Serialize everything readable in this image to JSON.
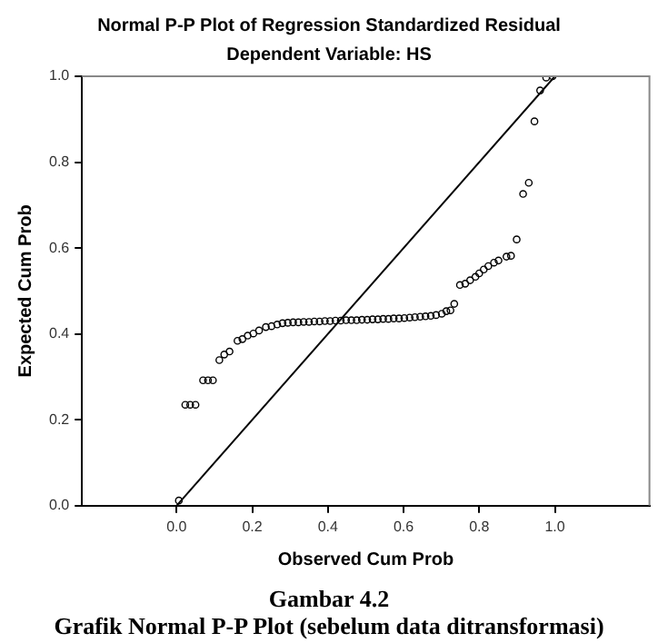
{
  "chart_data": {
    "type": "scatter",
    "title": "Normal P-P Plot of Regression Standardized Residual",
    "subtitle": "Dependent Variable: HS",
    "xlabel": "Observed Cum Prob",
    "ylabel": "Expected Cum Prob",
    "annotations": [
      "Gambar 4.2",
      "Grafik Normal P-P Plot (sebelum data ditransformasi)"
    ],
    "xlim": [
      -0.25,
      1.25
    ],
    "ylim": [
      0,
      1
    ],
    "xticks": [
      {
        "value": 0,
        "label": "0.0"
      },
      0.2,
      0.4,
      0.6,
      0.8,
      {
        "value": 1,
        "label": "1.0"
      }
    ],
    "yticks": [
      {
        "value": 0,
        "label": "0.0"
      },
      0.2,
      0.4,
      0.6,
      0.8,
      {
        "value": 1,
        "label": "1.0"
      }
    ],
    "grid": false,
    "legend": false,
    "series": [
      {
        "type": "scatter",
        "marker": "circle",
        "color": "#000000",
        "x": [
          0.006,
          0.023,
          0.036,
          0.05,
          0.07,
          0.083,
          0.096,
          0.113,
          0.126,
          0.14,
          0.161,
          0.174,
          0.188,
          0.203,
          0.218,
          0.236,
          0.251,
          0.266,
          0.28,
          0.294,
          0.308,
          0.322,
          0.336,
          0.35,
          0.364,
          0.378,
          0.392,
          0.406,
          0.42,
          0.434,
          0.448,
          0.462,
          0.476,
          0.49,
          0.504,
          0.518,
          0.532,
          0.546,
          0.56,
          0.574,
          0.588,
          0.602,
          0.616,
          0.63,
          0.644,
          0.658,
          0.672,
          0.686,
          0.701,
          0.713,
          0.724,
          0.734,
          0.749,
          0.763,
          0.776,
          0.79,
          0.8,
          0.812,
          0.824,
          0.839,
          0.851,
          0.872,
          0.884,
          0.899,
          0.916,
          0.931,
          0.946,
          0.961,
          0.977,
          0.994
        ],
        "values": [
          0.012,
          0.235,
          0.235,
          0.235,
          0.292,
          0.292,
          0.292,
          0.339,
          0.352,
          0.359,
          0.384,
          0.388,
          0.396,
          0.401,
          0.408,
          0.416,
          0.418,
          0.422,
          0.425,
          0.426,
          0.427,
          0.427,
          0.428,
          0.428,
          0.429,
          0.429,
          0.43,
          0.43,
          0.431,
          0.431,
          0.432,
          0.432,
          0.432,
          0.433,
          0.433,
          0.434,
          0.434,
          0.435,
          0.435,
          0.436,
          0.436,
          0.437,
          0.438,
          0.439,
          0.44,
          0.441,
          0.442,
          0.444,
          0.447,
          0.453,
          0.455,
          0.47,
          0.514,
          0.517,
          0.525,
          0.533,
          0.541,
          0.55,
          0.558,
          0.566,
          0.571,
          0.58,
          0.582,
          0.62,
          0.726,
          0.752,
          0.895,
          0.967,
          0.997,
          1.0
        ]
      },
      {
        "type": "line",
        "marker": "none",
        "color": "#000000",
        "x": [
          0,
          1
        ],
        "values": [
          0,
          1
        ]
      }
    ]
  }
}
